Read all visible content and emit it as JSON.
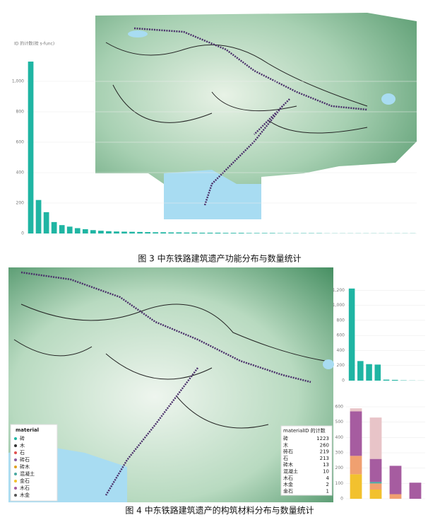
{
  "chart_data": [
    {
      "type": "bar",
      "title": "ID 的计数(按 s-func)",
      "color": "#1fb5a3",
      "categories": [
        null,
        null,
        null,
        null,
        null,
        null,
        null,
        null,
        null,
        null,
        null,
        null,
        null,
        null,
        null,
        null,
        null,
        null,
        null,
        null,
        null,
        null,
        null,
        null,
        null,
        null,
        null,
        null,
        null,
        null,
        null,
        null,
        null,
        null,
        null,
        null,
        null,
        null,
        null,
        null,
        null,
        null,
        null,
        null,
        null,
        null,
        null,
        null,
        null,
        null
      ],
      "values": [
        1130,
        220,
        140,
        75,
        55,
        45,
        35,
        28,
        22,
        18,
        15,
        13,
        12,
        11,
        10,
        9,
        8,
        8,
        7,
        7,
        6,
        6,
        5,
        5,
        5,
        4,
        4,
        4,
        3,
        3,
        3,
        3,
        2,
        2,
        2,
        2,
        2,
        2,
        1,
        1,
        1,
        1,
        1,
        1,
        1,
        1,
        1,
        1,
        1,
        1
      ],
      "ylim": [
        0,
        1200
      ],
      "yticks": [
        0,
        200,
        400,
        600,
        800,
        {
          "value": 1000,
          "label": "1,000"
        }
      ],
      "grid": true
    },
    {
      "type": "bar",
      "color": "#1fb5a3",
      "categories": [
        null,
        null,
        null,
        null,
        null,
        null,
        null,
        null,
        null
      ],
      "values": [
        1223,
        260,
        219,
        213,
        13,
        10,
        4,
        2,
        1
      ],
      "ylim": [
        0,
        1400
      ],
      "yticks": [
        0,
        200,
        400,
        600,
        800,
        {
          "value": 1000,
          "label": "1,000"
        },
        {
          "value": 1200,
          "label": "1,200"
        }
      ],
      "grid": true
    },
    {
      "type": "stacked-bar",
      "categories": [
        null,
        null,
        null,
        null
      ],
      "series": [
        {
          "name": null,
          "color": "#f2c12e",
          "values": [
            160,
            60,
            0,
            0
          ]
        },
        {
          "name": null,
          "color": "#f0a070",
          "values": [
            120,
            40,
            30,
            0
          ]
        },
        {
          "name": null,
          "color": "#4aa8a0",
          "values": [
            0,
            10,
            0,
            0
          ]
        },
        {
          "name": null,
          "color": "#a65ca0",
          "values": [
            290,
            150,
            185,
            105
          ]
        },
        {
          "name": null,
          "color": "#e8c4c8",
          "values": [
            20,
            270,
            0,
            0
          ]
        }
      ],
      "ylim": [
        0,
        600
      ],
      "yticks": [
        0,
        100,
        200,
        300,
        400,
        500,
        600
      ],
      "grid": true
    }
  ],
  "captions": [
    "图 3 中东铁路建筑遗产功能分布与数量统计",
    "图 4 中东铁路建筑遗产的构筑材料分布与数量统计"
  ],
  "material_legend": {
    "title": "material",
    "items": [
      {
        "label": "砖",
        "color": "#1fb5a3"
      },
      {
        "label": "木",
        "color": "#333333"
      },
      {
        "label": "石",
        "color": "#e05050"
      },
      {
        "label": "砖石",
        "color": "#8a5ca0"
      },
      {
        "label": "砖木",
        "color": "#e0a020"
      },
      {
        "label": "混凝土",
        "color": "#4aa8a0"
      },
      {
        "label": "金石",
        "color": "#f2c12e"
      },
      {
        "label": "木石",
        "color": "#a65ca0"
      },
      {
        "label": "木金",
        "color": "#555555"
      }
    ]
  },
  "material_table": {
    "columns": [
      "material",
      "ID 的计数"
    ],
    "rows": [
      [
        "砖",
        1223
      ],
      [
        "木",
        260
      ],
      [
        "砖石",
        219
      ],
      [
        "石",
        213
      ],
      [
        "砖木",
        13
      ],
      [
        "混凝土",
        10
      ],
      [
        "木石",
        4
      ],
      [
        "木金",
        2
      ],
      [
        "金石",
        1
      ]
    ]
  }
}
